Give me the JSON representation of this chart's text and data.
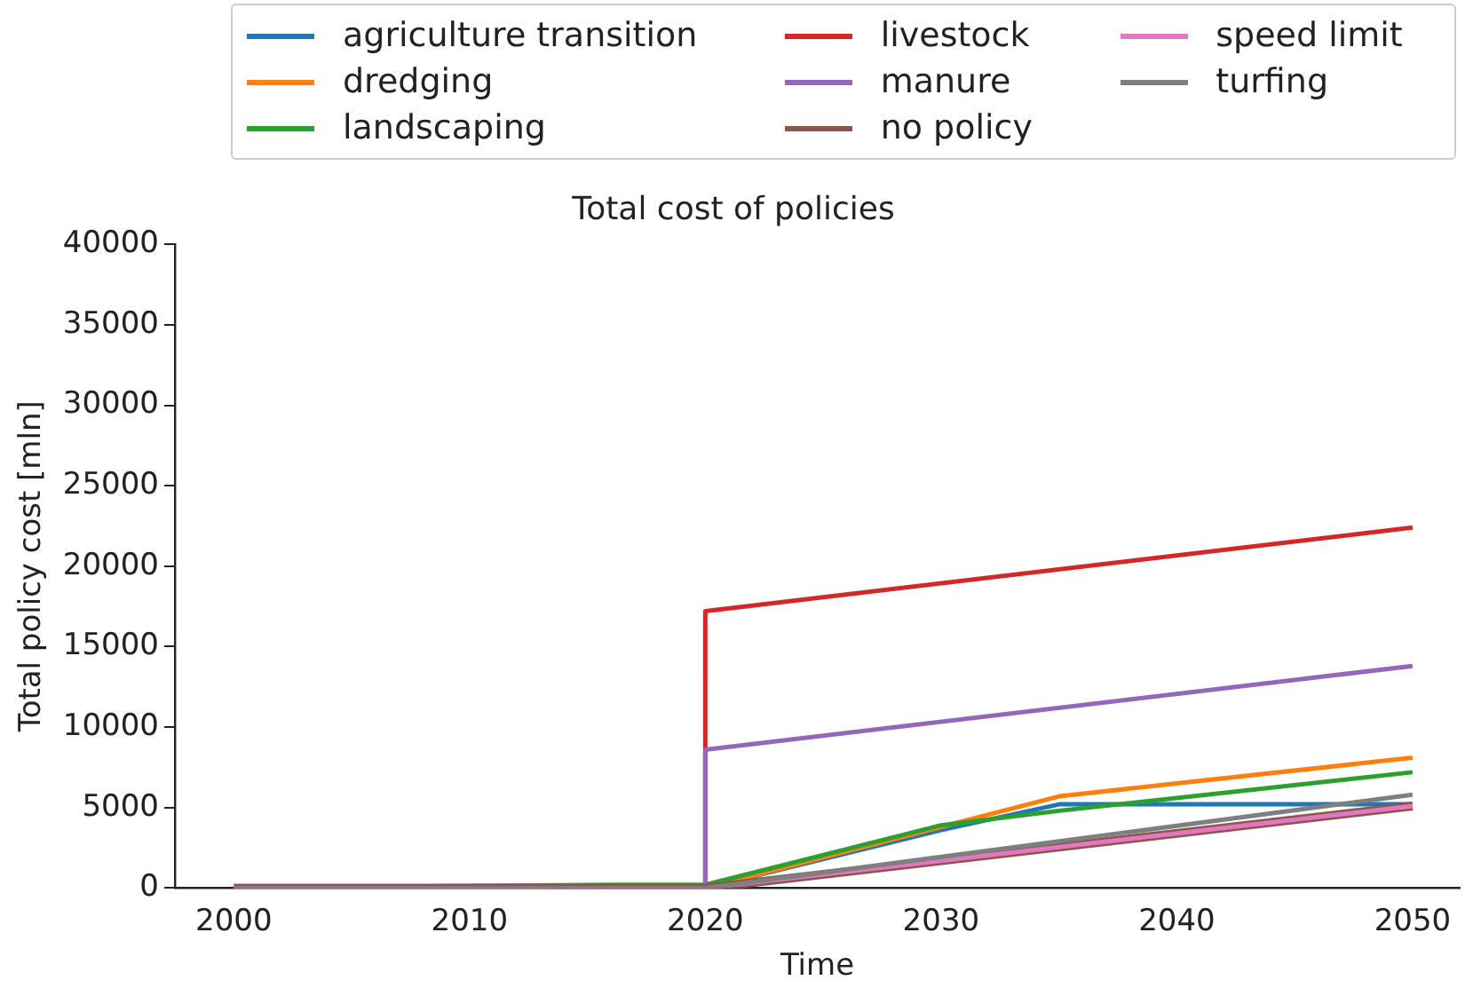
{
  "chart_data": {
    "type": "line",
    "title": "Total cost of policies",
    "xlabel": "Time",
    "ylabel": "Total policy cost [mln]",
    "xlim": [
      1997.5,
      2052
    ],
    "xticks": [
      2000,
      2010,
      2020,
      2030,
      2040,
      2050
    ],
    "ylim": [
      0,
      40000
    ],
    "yticks": [
      0,
      5000,
      10000,
      15000,
      20000,
      25000,
      30000,
      35000,
      40000
    ],
    "grid": false,
    "legend": "top",
    "marker": "none",
    "line_style": "solid",
    "series": [
      {
        "name": "agriculture transition",
        "color": "#1f77b4",
        "x": [
          2000,
          2020,
          2030,
          2035,
          2050
        ],
        "values": [
          0,
          0,
          3600,
          5200,
          5200
        ]
      },
      {
        "name": "dredging",
        "color": "#ff7f0e",
        "x": [
          2000,
          2020,
          2030,
          2035,
          2050
        ],
        "values": [
          0,
          0,
          3800,
          5700,
          8100
        ]
      },
      {
        "name": "landscaping",
        "color": "#2ca02c",
        "x": [
          2000,
          2016,
          2020,
          2030,
          2035,
          2050
        ],
        "values": [
          0,
          200,
          200,
          3900,
          4800,
          7200
        ]
      },
      {
        "name": "livestock",
        "color": "#d62728",
        "x": [
          2000,
          2020,
          2020,
          2050
        ],
        "values": [
          0,
          0,
          17200,
          22400
        ]
      },
      {
        "name": "manure",
        "color": "#9467bd",
        "x": [
          2000,
          2020,
          2020,
          2050
        ],
        "values": [
          0,
          0,
          8600,
          13800
        ]
      },
      {
        "name": "no policy",
        "color": "#8c564b",
        "x": [
          2000,
          2020,
          2050
        ],
        "values": [
          0,
          0,
          5100
        ]
      },
      {
        "name": "speed limit",
        "color": "#e377c2",
        "x": [
          2000,
          2020,
          2050
        ],
        "values": [
          0,
          0,
          5100
        ]
      },
      {
        "name": "turfing",
        "color": "#7f7f7f",
        "x": [
          2000,
          2020,
          2050
        ],
        "values": [
          0,
          0,
          5800
        ]
      }
    ]
  }
}
